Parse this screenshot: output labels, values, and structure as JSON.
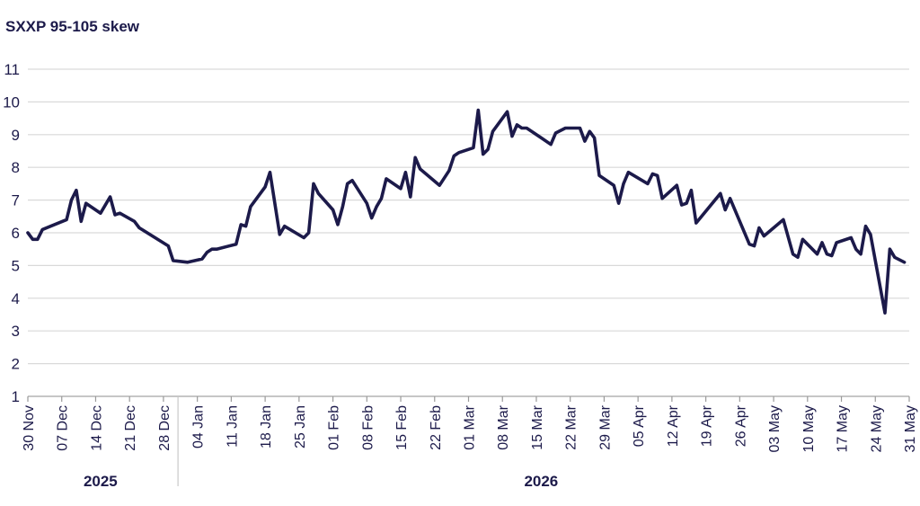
{
  "chart_data": {
    "type": "line",
    "title": "SXXP 95-105 skew",
    "xlabel": "",
    "ylabel": "",
    "ylim": [
      1,
      11
    ],
    "yticks": [
      1,
      2,
      3,
      4,
      5,
      6,
      7,
      8,
      9,
      10,
      11
    ],
    "xlim": [
      "2025-11-30",
      "2026-05-31"
    ],
    "xtick_labels": [
      {
        "date": "2025-11-30",
        "label": "30 Nov"
      },
      {
        "date": "2025-12-07",
        "label": "07 Dec"
      },
      {
        "date": "2025-12-14",
        "label": "14 Dec"
      },
      {
        "date": "2025-12-21",
        "label": "21 Dec"
      },
      {
        "date": "2025-12-28",
        "label": "28 Dec"
      },
      {
        "date": "2026-01-04",
        "label": "04 Jan"
      },
      {
        "date": "2026-01-11",
        "label": "11 Jan"
      },
      {
        "date": "2026-01-18",
        "label": "18 Jan"
      },
      {
        "date": "2026-01-25",
        "label": "25 Jan"
      },
      {
        "date": "2026-02-01",
        "label": "01 Feb"
      },
      {
        "date": "2026-02-08",
        "label": "08 Feb"
      },
      {
        "date": "2026-02-15",
        "label": "15 Feb"
      },
      {
        "date": "2026-02-22",
        "label": "22 Feb"
      },
      {
        "date": "2026-03-01",
        "label": "01 Mar"
      },
      {
        "date": "2026-03-08",
        "label": "08 Mar"
      },
      {
        "date": "2026-03-15",
        "label": "15 Mar"
      },
      {
        "date": "2026-03-22",
        "label": "22 Mar"
      },
      {
        "date": "2026-03-29",
        "label": "29 Mar"
      },
      {
        "date": "2026-04-05",
        "label": "05 Apr"
      },
      {
        "date": "2026-04-12",
        "label": "12 Apr"
      },
      {
        "date": "2026-04-19",
        "label": "19 Apr"
      },
      {
        "date": "2026-04-26",
        "label": "26 Apr"
      },
      {
        "date": "2026-05-03",
        "label": "03 May"
      },
      {
        "date": "2026-05-10",
        "label": "10 May"
      },
      {
        "date": "2026-05-17",
        "label": "17 May"
      },
      {
        "date": "2026-05-24",
        "label": "24 May"
      },
      {
        "date": "2026-05-31",
        "label": "31 May"
      }
    ],
    "year_labels": [
      {
        "label": "2025",
        "center": "2025-12-15"
      },
      {
        "label": "2026",
        "center": "2026-03-16"
      }
    ],
    "year_divider": "2025-12-31",
    "grid": true,
    "line_color": "#1c1a4a",
    "grid_color": "#d9d9d9",
    "series": [
      {
        "points": [
          [
            "2025-11-30",
            6.0
          ],
          [
            "2025-12-01",
            5.8
          ],
          [
            "2025-12-02",
            5.8
          ],
          [
            "2025-12-03",
            6.1
          ],
          [
            "2025-12-08",
            6.4
          ],
          [
            "2025-12-09",
            7.0
          ],
          [
            "2025-12-10",
            7.3
          ],
          [
            "2025-12-11",
            6.35
          ],
          [
            "2025-12-12",
            6.9
          ],
          [
            "2025-12-15",
            6.6
          ],
          [
            "2025-12-17",
            7.1
          ],
          [
            "2025-12-18",
            6.55
          ],
          [
            "2025-12-19",
            6.6
          ],
          [
            "2025-12-22",
            6.35
          ],
          [
            "2025-12-23",
            6.15
          ],
          [
            "2025-12-29",
            5.6
          ],
          [
            "2025-12-30",
            5.15
          ],
          [
            "2026-01-02",
            5.1
          ],
          [
            "2026-01-05",
            5.2
          ],
          [
            "2026-01-06",
            5.4
          ],
          [
            "2026-01-07",
            5.5
          ],
          [
            "2026-01-08",
            5.5
          ],
          [
            "2026-01-12",
            5.65
          ],
          [
            "2026-01-13",
            6.25
          ],
          [
            "2026-01-14",
            6.2
          ],
          [
            "2026-01-15",
            6.8
          ],
          [
            "2026-01-18",
            7.4
          ],
          [
            "2026-01-19",
            7.85
          ],
          [
            "2026-01-21",
            5.95
          ],
          [
            "2026-01-22",
            6.2
          ],
          [
            "2026-01-26",
            5.85
          ],
          [
            "2026-01-27",
            6.0
          ],
          [
            "2026-01-28",
            7.5
          ],
          [
            "2026-01-29",
            7.2
          ],
          [
            "2026-02-01",
            6.7
          ],
          [
            "2026-02-02",
            6.25
          ],
          [
            "2026-02-03",
            6.8
          ],
          [
            "2026-02-04",
            7.5
          ],
          [
            "2026-02-05",
            7.6
          ],
          [
            "2026-02-08",
            6.9
          ],
          [
            "2026-02-09",
            6.45
          ],
          [
            "2026-02-10",
            6.8
          ],
          [
            "2026-02-11",
            7.05
          ],
          [
            "2026-02-12",
            7.65
          ],
          [
            "2026-02-15",
            7.35
          ],
          [
            "2026-02-16",
            7.85
          ],
          [
            "2026-02-17",
            7.1
          ],
          [
            "2026-02-18",
            8.3
          ],
          [
            "2026-02-19",
            7.95
          ],
          [
            "2026-02-23",
            7.45
          ],
          [
            "2026-02-25",
            7.9
          ],
          [
            "2026-02-26",
            8.35
          ],
          [
            "2026-02-27",
            8.45
          ],
          [
            "2026-03-02",
            8.6
          ],
          [
            "2026-03-03",
            9.75
          ],
          [
            "2026-03-04",
            8.4
          ],
          [
            "2026-03-05",
            8.55
          ],
          [
            "2026-03-06",
            9.1
          ],
          [
            "2026-03-09",
            9.7
          ],
          [
            "2026-03-10",
            8.95
          ],
          [
            "2026-03-11",
            9.3
          ],
          [
            "2026-03-12",
            9.2
          ],
          [
            "2026-03-13",
            9.2
          ],
          [
            "2026-03-16",
            8.9
          ],
          [
            "2026-03-18",
            8.7
          ],
          [
            "2026-03-19",
            9.05
          ],
          [
            "2026-03-21",
            9.2
          ],
          [
            "2026-03-23",
            9.2
          ],
          [
            "2026-03-24",
            9.2
          ],
          [
            "2026-03-25",
            8.8
          ],
          [
            "2026-03-26",
            9.1
          ],
          [
            "2026-03-27",
            8.9
          ],
          [
            "2026-03-28",
            7.75
          ],
          [
            "2026-03-31",
            7.45
          ],
          [
            "2026-04-01",
            6.9
          ],
          [
            "2026-04-02",
            7.5
          ],
          [
            "2026-04-03",
            7.85
          ],
          [
            "2026-04-07",
            7.5
          ],
          [
            "2026-04-08",
            7.8
          ],
          [
            "2026-04-09",
            7.75
          ],
          [
            "2026-04-10",
            7.05
          ],
          [
            "2026-04-13",
            7.45
          ],
          [
            "2026-04-14",
            6.85
          ],
          [
            "2026-04-15",
            6.9
          ],
          [
            "2026-04-16",
            7.3
          ],
          [
            "2026-04-17",
            6.3
          ],
          [
            "2026-04-22",
            7.2
          ],
          [
            "2026-04-23",
            6.7
          ],
          [
            "2026-04-24",
            7.05
          ],
          [
            "2026-04-28",
            5.65
          ],
          [
            "2026-04-29",
            5.6
          ],
          [
            "2026-04-30",
            6.15
          ],
          [
            "2026-05-01",
            5.9
          ],
          [
            "2026-05-05",
            6.4
          ],
          [
            "2026-05-07",
            5.35
          ],
          [
            "2026-05-08",
            5.25
          ],
          [
            "2026-05-09",
            5.8
          ],
          [
            "2026-05-12",
            5.35
          ],
          [
            "2026-05-13",
            5.7
          ],
          [
            "2026-05-14",
            5.35
          ],
          [
            "2026-05-15",
            5.3
          ],
          [
            "2026-05-16",
            5.7
          ],
          [
            "2026-05-19",
            5.85
          ],
          [
            "2026-05-20",
            5.5
          ],
          [
            "2026-05-21",
            5.35
          ],
          [
            "2026-05-22",
            6.2
          ],
          [
            "2026-05-23",
            5.95
          ],
          [
            "2026-05-26",
            3.55
          ],
          [
            "2026-05-27",
            5.5
          ],
          [
            "2026-05-28",
            5.25
          ],
          [
            "2026-05-30",
            5.1
          ]
        ]
      }
    ]
  }
}
